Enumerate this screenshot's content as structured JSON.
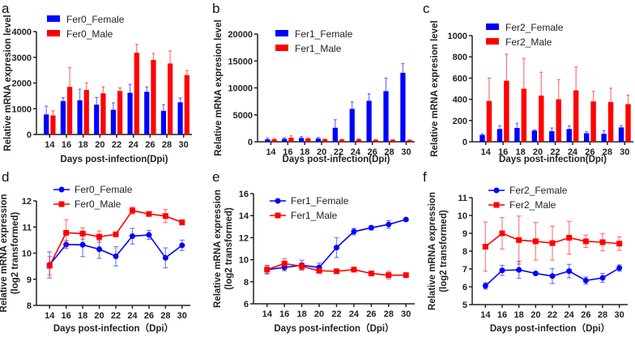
{
  "colors": {
    "female": "#0000ff",
    "male": "#ff0000"
  },
  "chart_data": [
    {
      "panel": "a",
      "type": "bar",
      "categories": [
        "14",
        "16",
        "18",
        "20",
        "22",
        "24",
        "26",
        "28",
        "30"
      ],
      "xlabel": "Days post-infection(Dpi)",
      "ylabel": "Relative mRNA expresion level",
      "ylim": [
        0,
        4000
      ],
      "yticks": [
        0,
        1000,
        2000,
        3000,
        4000
      ],
      "legend": "top-left",
      "series": [
        {
          "name": "Fer0_Female",
          "color": "female",
          "values": [
            780,
            1300,
            1330,
            1160,
            960,
            1620,
            1660,
            920,
            1250
          ],
          "errors": [
            320,
            130,
            430,
            280,
            270,
            330,
            190,
            240,
            170
          ]
        },
        {
          "name": "Fer0_Male",
          "color": "male",
          "values": [
            740,
            1850,
            1730,
            1600,
            1690,
            3180,
            2900,
            2760,
            2310
          ],
          "errors": [
            180,
            750,
            280,
            250,
            120,
            320,
            250,
            490,
            180
          ]
        }
      ]
    },
    {
      "panel": "b",
      "type": "bar",
      "categories": [
        "14",
        "16",
        "18",
        "20",
        "22",
        "24",
        "26",
        "28",
        "30"
      ],
      "xlabel": "Days post-infection(Dpi)",
      "ylabel": "Relative mRNA expresion level",
      "ylim": [
        0,
        20000
      ],
      "yticks": [
        0,
        5000,
        10000,
        15000,
        20000
      ],
      "legend": "top-left",
      "series": [
        {
          "name": "Fer1_Female",
          "color": "female",
          "values": [
            450,
            550,
            700,
            600,
            2600,
            6100,
            7600,
            9400,
            12800
          ],
          "errors": [
            200,
            200,
            250,
            200,
            1500,
            1300,
            1300,
            2400,
            1700
          ]
        },
        {
          "name": "Fer1_Male",
          "color": "male",
          "values": [
            450,
            750,
            600,
            450,
            400,
            450,
            350,
            350,
            300
          ],
          "errors": [
            150,
            350,
            150,
            80,
            80,
            120,
            80,
            80,
            60
          ]
        }
      ]
    },
    {
      "panel": "c",
      "type": "bar",
      "categories": [
        "14",
        "16",
        "18",
        "20",
        "22",
        "24",
        "26",
        "28",
        "30"
      ],
      "xlabel": "Days post-infection(Dpi)",
      "ylabel": "Relative mRNA expresion level",
      "ylim": [
        0,
        1000
      ],
      "yticks": [
        0,
        200,
        400,
        600,
        800,
        1000
      ],
      "legend": "top-left",
      "series": [
        {
          "name": "Fer2_Female",
          "color": "female",
          "values": [
            65,
            120,
            130,
            105,
            100,
            120,
            80,
            75,
            135
          ],
          "errors": [
            10,
            30,
            45,
            8,
            30,
            30,
            15,
            30,
            18
          ]
        },
        {
          "name": "Fer2_Male",
          "color": "male",
          "values": [
            385,
            575,
            500,
            435,
            400,
            485,
            380,
            375,
            355
          ],
          "errors": [
            215,
            250,
            285,
            220,
            185,
            220,
            95,
            130,
            85
          ]
        }
      ]
    },
    {
      "panel": "d",
      "type": "line",
      "categories": [
        "14",
        "16",
        "18",
        "20",
        "22",
        "24",
        "26",
        "28",
        "30"
      ],
      "xlabel": "Days post-infection（Dpi）",
      "ylabel": "Relative mRNA expression",
      "ylabel2": "(log2 transformed)",
      "ylim": [
        8,
        12
      ],
      "yticks": [
        8,
        9,
        10,
        11,
        12
      ],
      "legend": "top-left",
      "series": [
        {
          "name": "Fer0_Female",
          "color": "female",
          "marker": "circle",
          "values": [
            9.55,
            10.33,
            10.32,
            10.15,
            9.88,
            10.65,
            10.7,
            9.82,
            10.3
          ],
          "errors": [
            0.5,
            0.15,
            0.45,
            0.35,
            0.37,
            0.3,
            0.17,
            0.38,
            0.2
          ]
        },
        {
          "name": "Fer0_Male",
          "color": "male",
          "marker": "square",
          "values": [
            9.52,
            10.78,
            10.75,
            10.63,
            10.72,
            11.63,
            11.5,
            11.42,
            11.18
          ],
          "errors": [
            0.35,
            0.5,
            0.22,
            0.22,
            0.08,
            0.13,
            0.08,
            0.25,
            0.1
          ]
        }
      ]
    },
    {
      "panel": "e",
      "type": "line",
      "categories": [
        "14",
        "16",
        "18",
        "20",
        "22",
        "24",
        "26",
        "28",
        "30"
      ],
      "xlabel": "Days post-infection（Dpi）",
      "ylabel": "Relative mRNA expression",
      "ylabel2": "(log2 transformed)",
      "ylim": [
        6,
        16
      ],
      "yticks": [
        6,
        8,
        10,
        12,
        14,
        16
      ],
      "legend": "top-left",
      "series": [
        {
          "name": "Fer1_Female",
          "color": "female",
          "marker": "circle",
          "values": [
            9.1,
            9.3,
            9.5,
            9.3,
            11.1,
            12.55,
            12.9,
            13.2,
            13.65
          ],
          "errors": [
            0.35,
            0.3,
            0.45,
            0.4,
            0.9,
            0.3,
            0.2,
            0.35,
            0.05
          ]
        },
        {
          "name": "Fer1_Male",
          "color": "male",
          "marker": "square",
          "values": [
            9.1,
            9.65,
            9.4,
            9.0,
            8.95,
            9.1,
            8.75,
            8.6,
            8.6
          ],
          "errors": [
            0.4,
            0.45,
            0.3,
            0.15,
            0.1,
            0.1,
            0.1,
            0.35,
            0.08
          ]
        }
      ]
    },
    {
      "panel": "f",
      "type": "line",
      "categories": [
        "14",
        "16",
        "18",
        "20",
        "22",
        "24",
        "26",
        "28",
        "30"
      ],
      "xlabel": "Days post-infection（Dpi）",
      "ylabel": "Relative mRNA expression",
      "ylabel2": "(log2 transformed)",
      "ylim": [
        5,
        11
      ],
      "yticks": [
        5,
        6,
        7,
        8,
        9,
        10,
        11
      ],
      "legend": "top-left",
      "series": [
        {
          "name": "Fer2_Female",
          "color": "female",
          "marker": "circle",
          "values": [
            6.05,
            6.92,
            6.95,
            6.75,
            6.6,
            6.88,
            6.35,
            6.5,
            7.05
          ],
          "errors": [
            0.18,
            0.28,
            0.48,
            0.08,
            0.42,
            0.38,
            0.2,
            0.25,
            0.18
          ]
        },
        {
          "name": "Fer2_Male",
          "color": "male",
          "marker": "square",
          "values": [
            8.25,
            9.0,
            8.62,
            8.55,
            8.45,
            8.75,
            8.55,
            8.5,
            8.42
          ],
          "errors": [
            1.38,
            0.88,
            1.35,
            1.05,
            0.95,
            0.92,
            0.35,
            0.48,
            0.38
          ]
        }
      ]
    }
  ]
}
